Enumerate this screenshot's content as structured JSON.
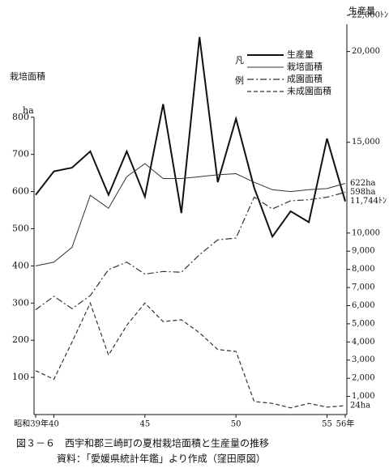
{
  "chart_data": {
    "type": "line",
    "y_title": "栽培面積",
    "y_unit": "ha",
    "y2_title": "生産量",
    "legend_title": "凡例",
    "caption": "図３－６　西宇和郡三崎町の夏柑栽培面積と生産量の推移",
    "source": "資料：「愛媛県統計年鑑」より作成（窪田原図）",
    "x": [
      39,
      40,
      41,
      42,
      43,
      44,
      45,
      46,
      47,
      48,
      49,
      50,
      51,
      52,
      53,
      54,
      55,
      56
    ],
    "xlim": [
      39,
      56
    ],
    "xticks": [
      {
        "value": 39,
        "label": "昭和39年"
      },
      40,
      45,
      50,
      55,
      {
        "value": 56,
        "label": "56年"
      }
    ],
    "ylim": [
      0,
      1050
    ],
    "yticks": [
      100,
      200,
      300,
      400,
      500,
      600,
      700,
      800
    ],
    "y2lim": [
      0,
      21500
    ],
    "y2ticks": [
      {
        "value": 1000,
        "label": "1,000"
      },
      {
        "value": 2000,
        "label": "2,000"
      },
      {
        "value": 3000,
        "label": "3,000"
      },
      {
        "value": 4000,
        "label": "4,000"
      },
      {
        "value": 5000,
        "label": "5,000"
      },
      {
        "value": 6000,
        "label": "6,000"
      },
      {
        "value": 7000,
        "label": "7,000"
      },
      {
        "value": 8000,
        "label": "8,000"
      },
      {
        "value": 9000,
        "label": "9,000"
      },
      {
        "value": 10000,
        "label": "10,000"
      },
      {
        "value": 15000,
        "label": "15,000"
      },
      {
        "value": 20000,
        "label": "20,000"
      },
      {
        "value": 22000,
        "label": "22,000ﾄﾝ"
      }
    ],
    "series": [
      {
        "name": "生産量",
        "color": "#111111",
        "style": "solid",
        "width": 2,
        "axis": "y2",
        "values": [
          12100,
          13400,
          13600,
          14500,
          12100,
          14500,
          12000,
          17100,
          11100,
          20800,
          12800,
          16300,
          12500,
          9800,
          11200,
          10600,
          15200,
          11744
        ],
        "value_labels": [
          null,
          null,
          null,
          null,
          null,
          null,
          null,
          null,
          null,
          null,
          null,
          null,
          null,
          null,
          null,
          null,
          null,
          "11,744ﾄﾝ"
        ]
      },
      {
        "name": "栽培面積",
        "color": "#333333",
        "style": "solid",
        "width": 1,
        "values": [
          400,
          410,
          450,
          590,
          555,
          640,
          675,
          635,
          635,
          640,
          645,
          648,
          625,
          605,
          600,
          605,
          608,
          622
        ],
        "value_labels": [
          null,
          null,
          null,
          null,
          null,
          null,
          null,
          null,
          null,
          null,
          null,
          null,
          null,
          null,
          null,
          null,
          null,
          "622ha"
        ]
      },
      {
        "name": "成園面積",
        "color": "#333333",
        "style": "dashdot",
        "width": 1.2,
        "values": [
          282,
          318,
          285,
          320,
          390,
          410,
          378,
          385,
          383,
          430,
          470,
          475,
          585,
          553,
          575,
          578,
          585,
          598
        ],
        "value_labels": [
          null,
          null,
          null,
          null,
          null,
          null,
          null,
          null,
          null,
          null,
          null,
          null,
          null,
          null,
          null,
          null,
          null,
          "598ha"
        ]
      },
      {
        "name": "未成園面積",
        "color": "#333333",
        "style": "dashed",
        "width": 1.2,
        "values": [
          118,
          95,
          195,
          300,
          160,
          240,
          300,
          250,
          255,
          220,
          175,
          170,
          35,
          30,
          18,
          30,
          20,
          24
        ],
        "value_labels": [
          null,
          null,
          null,
          null,
          null,
          null,
          null,
          null,
          null,
          null,
          null,
          null,
          null,
          null,
          null,
          null,
          null,
          "24ha"
        ]
      }
    ]
  }
}
